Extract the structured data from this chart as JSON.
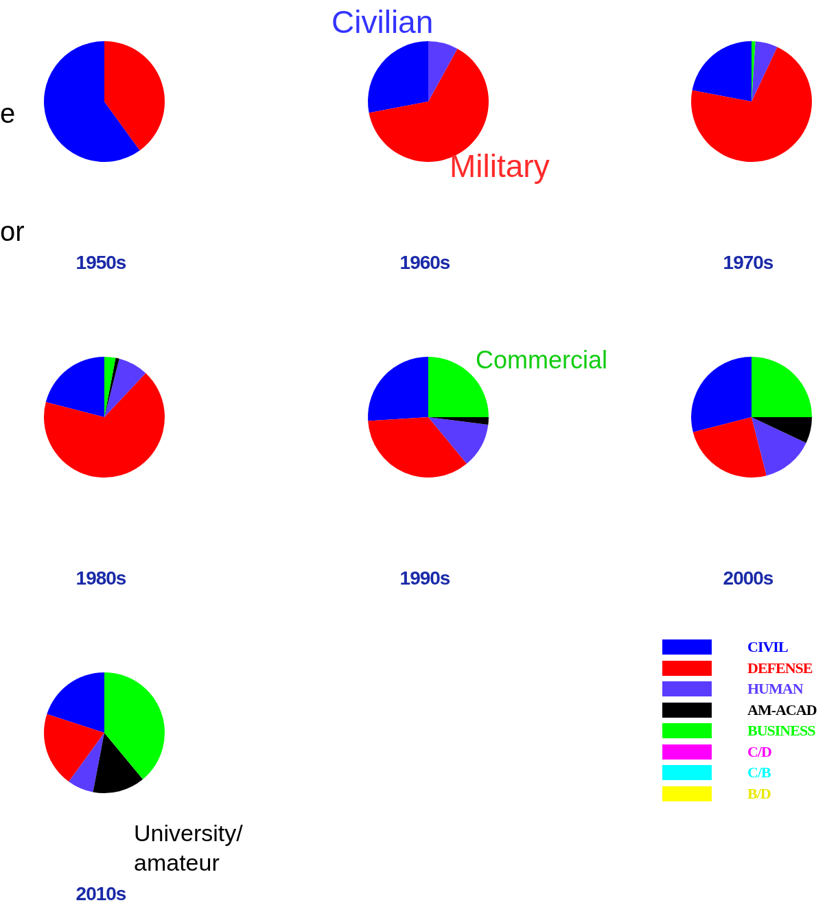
{
  "chart_data": [
    {
      "type": "pie",
      "title": "1950s",
      "categories": [
        null,
        null,
        null,
        null,
        null,
        null,
        null,
        null
      ],
      "values": [
        60,
        40,
        0,
        0,
        0,
        0,
        0,
        0
      ],
      "colors": [
        "#0000ff",
        "#ff0000",
        "#5a3cff",
        "#000000",
        "#00ff00",
        "#ff00ff",
        "#00ffff",
        "#ffff00"
      ],
      "annotations": [
        "e",
        "or"
      ],
      "legend": false
    },
    {
      "type": "pie",
      "title": "1960s",
      "categories": [
        null,
        null,
        null,
        null,
        null,
        null,
        null,
        null
      ],
      "values": [
        28,
        64,
        8,
        0,
        0,
        0,
        0,
        0
      ],
      "colors": [
        "#0000ff",
        "#ff0000",
        "#5a3cff",
        "#000000",
        "#00ff00",
        "#ff00ff",
        "#00ffff",
        "#ffff00"
      ],
      "annotations": [
        "Civilian",
        "Military"
      ],
      "legend": false
    },
    {
      "type": "pie",
      "title": "1970s",
      "categories": [
        null,
        null,
        null,
        null,
        null,
        null,
        null,
        null
      ],
      "values": [
        22,
        71,
        6,
        0,
        1,
        0,
        0,
        0
      ],
      "colors": [
        "#0000ff",
        "#ff0000",
        "#5a3cff",
        "#000000",
        "#00ff00",
        "#ff00ff",
        "#00ffff",
        "#ffff00"
      ],
      "legend": false
    },
    {
      "type": "pie",
      "title": "1980s",
      "categories": [
        null,
        null,
        null,
        null,
        null,
        null,
        null,
        null
      ],
      "values": [
        21,
        67,
        8,
        1,
        3,
        0,
        0,
        0
      ],
      "colors": [
        "#0000ff",
        "#ff0000",
        "#5a3cff",
        "#000000",
        "#00ff00",
        "#ff00ff",
        "#00ffff",
        "#ffff00"
      ],
      "legend": false
    },
    {
      "type": "pie",
      "title": "1990s",
      "categories": [
        null,
        null,
        null,
        null,
        null,
        null,
        null,
        null
      ],
      "values": [
        26,
        35,
        12,
        2,
        25,
        0,
        0,
        0
      ],
      "colors": [
        "#0000ff",
        "#ff0000",
        "#5a3cff",
        "#000000",
        "#00ff00",
        "#ff00ff",
        "#00ffff",
        "#ffff00"
      ],
      "annotations": [
        "Commercial"
      ],
      "legend": false
    },
    {
      "type": "pie",
      "title": "2000s",
      "categories": [
        null,
        null,
        null,
        null,
        null,
        null,
        null,
        null
      ],
      "values": [
        29,
        25,
        14,
        7,
        25,
        0,
        0,
        0
      ],
      "colors": [
        "#0000ff",
        "#ff0000",
        "#5a3cff",
        "#000000",
        "#00ff00",
        "#ff00ff",
        "#00ffff",
        "#ffff00"
      ],
      "legend": false
    },
    {
      "type": "pie",
      "title": "2010s",
      "categories": [
        "CIVIL",
        "DEFENSE",
        "HUMAN",
        "AM-ACAD",
        "BUSINESS",
        "C/D",
        "C/B",
        "B/D"
      ],
      "values": [
        20,
        20,
        7,
        14,
        39,
        0,
        0,
        0
      ],
      "colors": [
        "#0000ff",
        "#ff0000",
        "#5a3cff",
        "#000000",
        "#00ff00",
        "#ff00ff",
        "#00ffff",
        "#ffff00"
      ],
      "annotations": [
        "University/ amateur"
      ],
      "legend": "right"
    }
  ]
}
